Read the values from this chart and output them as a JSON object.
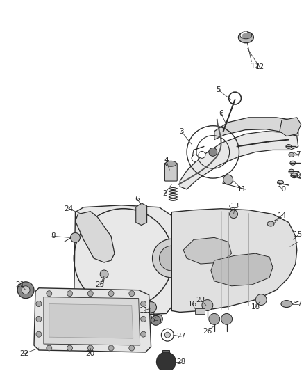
{
  "bg_color": "#ffffff",
  "fig_width": 4.38,
  "fig_height": 5.33,
  "line_color": "#2a2a2a",
  "gray": "#555555",
  "light_gray": "#aaaaaa"
}
